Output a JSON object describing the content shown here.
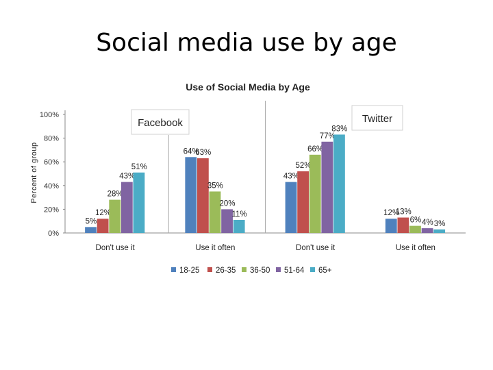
{
  "slide": {
    "title": "Social media use by age"
  },
  "chart_data": {
    "type": "bar",
    "title": "Use of Social Media by Age",
    "ylabel": "Percent of group",
    "xlabel": "",
    "ylim": [
      0,
      100
    ],
    "yticks": [
      "0%",
      "20%",
      "40%",
      "60%",
      "80%",
      "100%"
    ],
    "grid": false,
    "legend": "bottom",
    "groups": [
      {
        "label": "Facebook",
        "categories": [
          "Don't use it",
          "Use it often"
        ]
      },
      {
        "label": "Twitter",
        "categories": [
          "Don't use it",
          "Use it often"
        ]
      }
    ],
    "categories": [
      "Don't use it",
      "Use it often",
      "Don't use it",
      "Use it often"
    ],
    "series": [
      {
        "name": "18-25",
        "color": "#4f81bd",
        "values": [
          5,
          64,
          43,
          12
        ],
        "labels": [
          "5%",
          "64%",
          "43%",
          "12%"
        ]
      },
      {
        "name": "26-35",
        "color": "#c0504d",
        "values": [
          12,
          63,
          52,
          13
        ],
        "labels": [
          "12%",
          "63%",
          "52%",
          "13%"
        ]
      },
      {
        "name": "36-50",
        "color": "#9bbb59",
        "values": [
          28,
          35,
          66,
          6
        ],
        "labels": [
          "28%",
          "35%",
          "66%",
          "6%"
        ]
      },
      {
        "name": "51-64",
        "color": "#8064a2",
        "values": [
          43,
          20,
          77,
          4
        ],
        "labels": [
          "43%",
          "20%",
          "77%",
          "4%"
        ]
      },
      {
        "name": "65+",
        "color": "#4bacc6",
        "values": [
          51,
          11,
          83,
          3
        ],
        "labels": [
          "51%",
          "11%",
          "83%",
          "3%"
        ]
      }
    ]
  }
}
